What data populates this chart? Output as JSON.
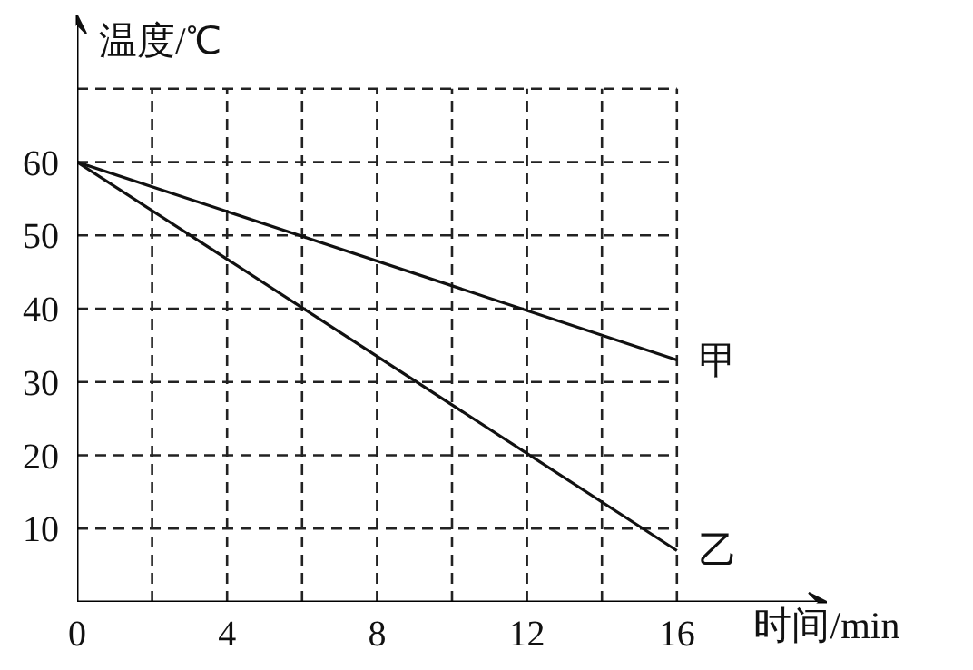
{
  "chart_data": {
    "type": "line",
    "xlabel": "时间/min",
    "ylabel": "温度/℃",
    "x": [
      0,
      16
    ],
    "series": [
      {
        "name": "甲",
        "color": "#111111",
        "values": [
          60,
          33
        ]
      },
      {
        "name": "乙",
        "color": "#111111",
        "values": [
          60,
          7
        ]
      }
    ],
    "xlim": [
      0,
      20
    ],
    "ylim": [
      0,
      80
    ],
    "xticks": [
      0,
      {
        "value": 2,
        "label": null
      },
      4,
      {
        "value": 6,
        "label": null
      },
      8,
      {
        "value": 10,
        "label": null
      },
      12,
      {
        "value": 14,
        "label": null
      },
      16
    ],
    "yticks": [
      10,
      20,
      30,
      40,
      50,
      60,
      {
        "value": 70,
        "label": null
      }
    ],
    "grid": true,
    "line_style": "solid",
    "marker": "none"
  }
}
